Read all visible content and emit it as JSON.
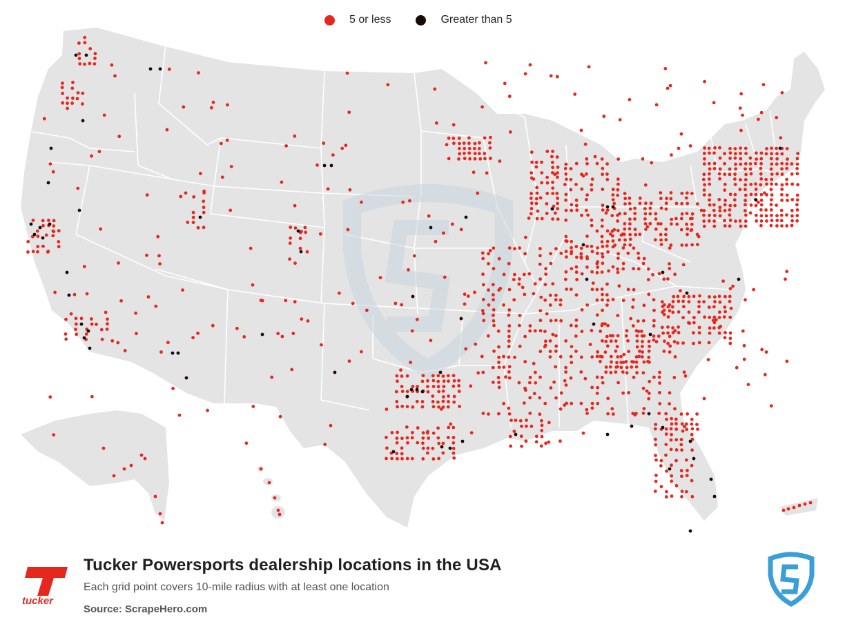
{
  "legend": {
    "items": [
      {
        "label": "5 or less",
        "color": "#e5281e"
      },
      {
        "label": "Greater than 5",
        "color": "#1a0a0a"
      }
    ]
  },
  "title": "Tucker Powersports dealership locations in the USA",
  "subtitle": "Each grid point covers 10-mile radius with at least one location",
  "source": "Source: ScrapeHero.com",
  "brand": {
    "name": "tucker",
    "color": "#e5281e"
  },
  "colors": {
    "land": "#e4e4e4",
    "border": "#ffffff",
    "low": "#e5281e",
    "high": "#1a0a0a",
    "watermark": "#c9d6e0",
    "scrapehero_blue": "#3a9fd6"
  },
  "icons": [
    "tucker-logo-icon",
    "scrapehero-logo-icon"
  ]
}
